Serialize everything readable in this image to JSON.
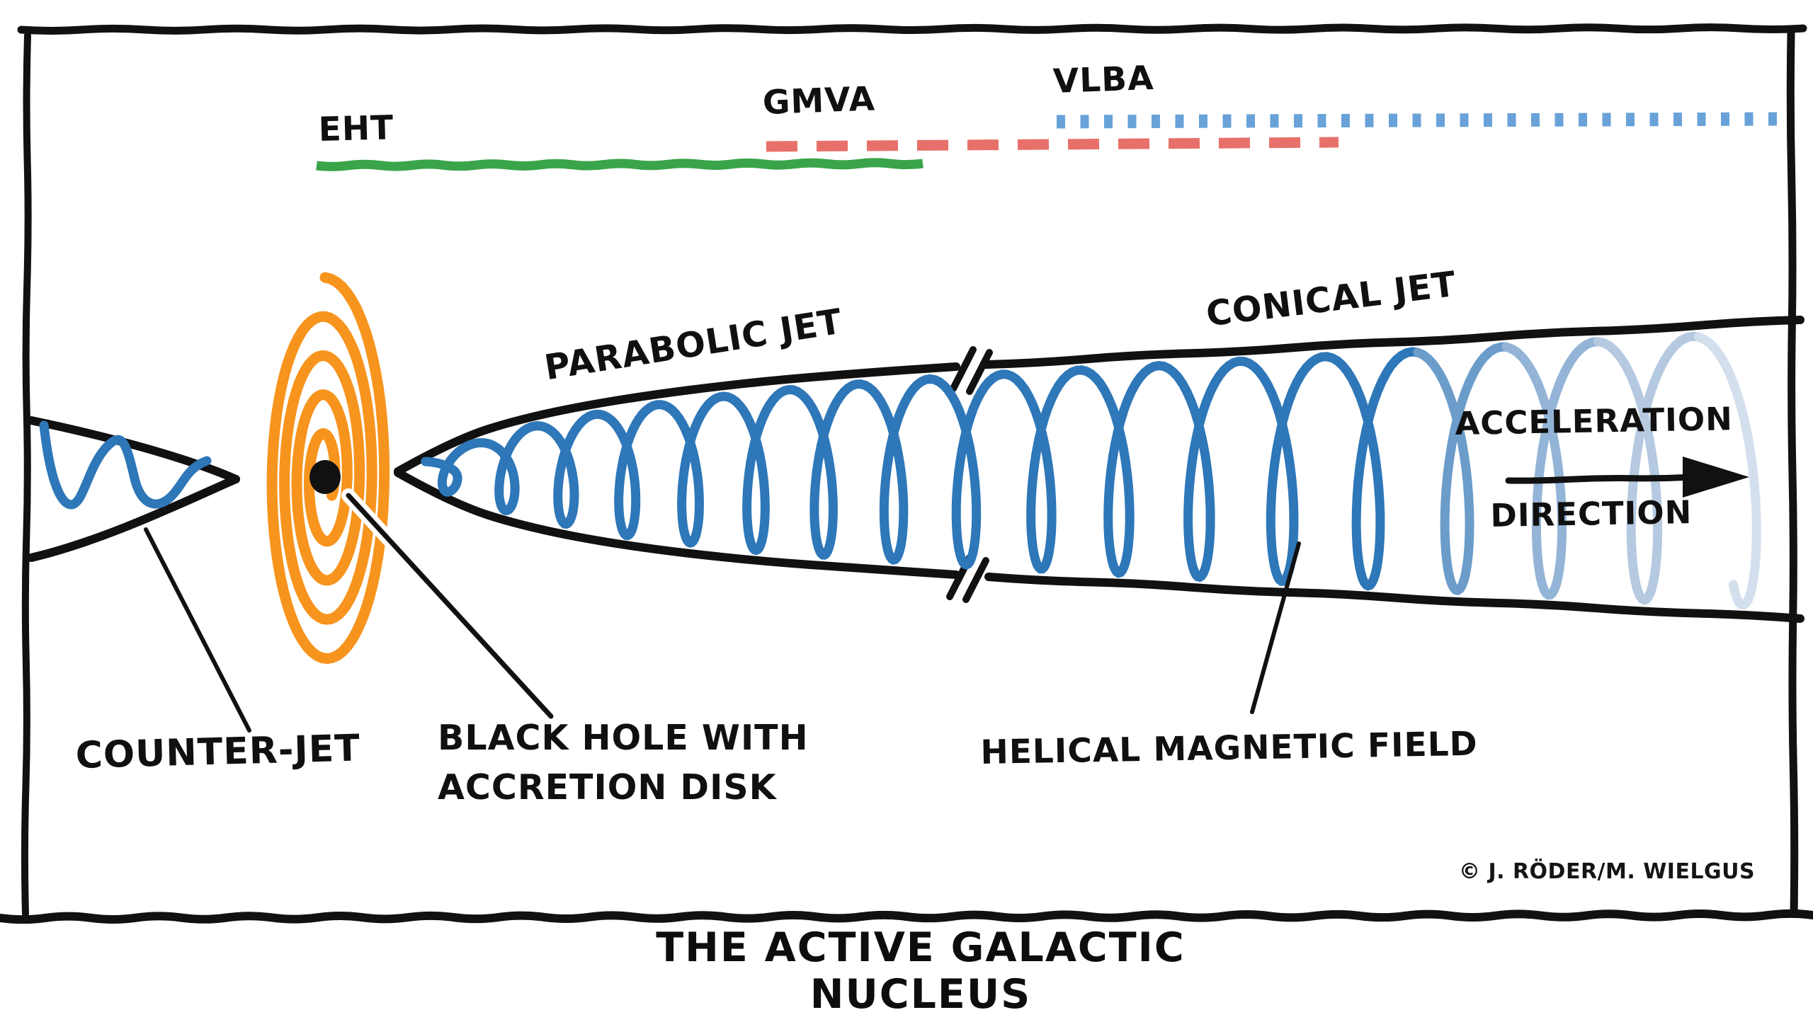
{
  "title": "THE ACTIVE GALACTIC NUCLEUS",
  "credit": "© J. RÖDER/M. WIELGUS",
  "legend": {
    "eht": {
      "label": "EHT",
      "style": "solid",
      "color": "#3aa44a"
    },
    "gmva": {
      "label": "GMVA",
      "style": "dashed",
      "color": "#e8706a"
    },
    "vlba": {
      "label": "VLBA",
      "style": "dotted",
      "color": "#68a2d8"
    }
  },
  "labels": {
    "parabolic_jet": "PARABOLIC JET",
    "conical_jet": "CONICAL JET",
    "acceleration": "ACCELERATION",
    "direction": "DIRECTION",
    "counter_jet": "COUNTER-JET",
    "black_hole": "BLACK HOLE WITH\nACCRETION DISK",
    "helical_field": "HELICAL MAGNETIC FIELD"
  },
  "colors": {
    "ink": "#111111",
    "accretion_disk": "#f7941e",
    "helix_blue": "#2e77b8",
    "helix_fade": [
      "#2e77b8",
      "#6b9cca",
      "#93b4d6",
      "#b5c9e0",
      "#d4dfee"
    ]
  }
}
